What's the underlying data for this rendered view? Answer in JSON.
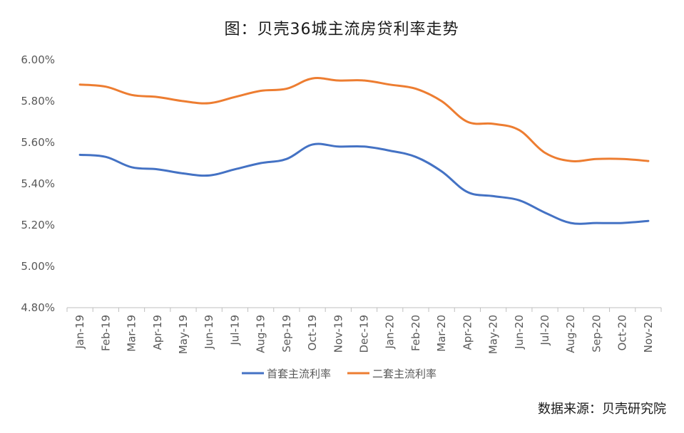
{
  "chart_data": {
    "type": "line",
    "title": "图：贝壳36城主流房贷利率走势",
    "categories": [
      "Jan-19",
      "Feb-19",
      "Mar-19",
      "Apr-19",
      "May-19",
      "Jun-19",
      "Jul-19",
      "Aug-19",
      "Sep-19",
      "Oct-19",
      "Nov-19",
      "Dec-19",
      "Jan-20",
      "Feb-20",
      "Mar-20",
      "Apr-20",
      "May-20",
      "Jun-20",
      "Jul-20",
      "Aug-20",
      "Sep-20",
      "Oct-20",
      "Nov-20"
    ],
    "series": [
      {
        "name": "首套主流利率",
        "color": "#4472C4",
        "values": [
          5.54,
          5.53,
          5.48,
          5.47,
          5.45,
          5.44,
          5.47,
          5.5,
          5.52,
          5.59,
          5.58,
          5.58,
          5.56,
          5.53,
          5.46,
          5.36,
          5.34,
          5.32,
          5.26,
          5.21,
          5.21,
          5.21,
          5.22
        ]
      },
      {
        "name": "二套主流利率",
        "color": "#ED7D31",
        "values": [
          5.88,
          5.87,
          5.83,
          5.82,
          5.8,
          5.79,
          5.82,
          5.85,
          5.86,
          5.91,
          5.9,
          5.9,
          5.88,
          5.86,
          5.8,
          5.7,
          5.69,
          5.66,
          5.55,
          5.51,
          5.52,
          5.52,
          5.51
        ]
      }
    ],
    "ylim": [
      4.8,
      6.0
    ],
    "y_ticks": [
      "6.00%",
      "5.80%",
      "5.60%",
      "5.40%",
      "5.20%",
      "5.00%",
      "4.80%"
    ],
    "y_tick_values": [
      6.0,
      5.8,
      5.6,
      5.4,
      5.2,
      5.0,
      4.8
    ],
    "grid": false,
    "legend_position": "bottom",
    "xlabel": "",
    "ylabel": ""
  },
  "source_text": "数据来源：贝壳研究院"
}
